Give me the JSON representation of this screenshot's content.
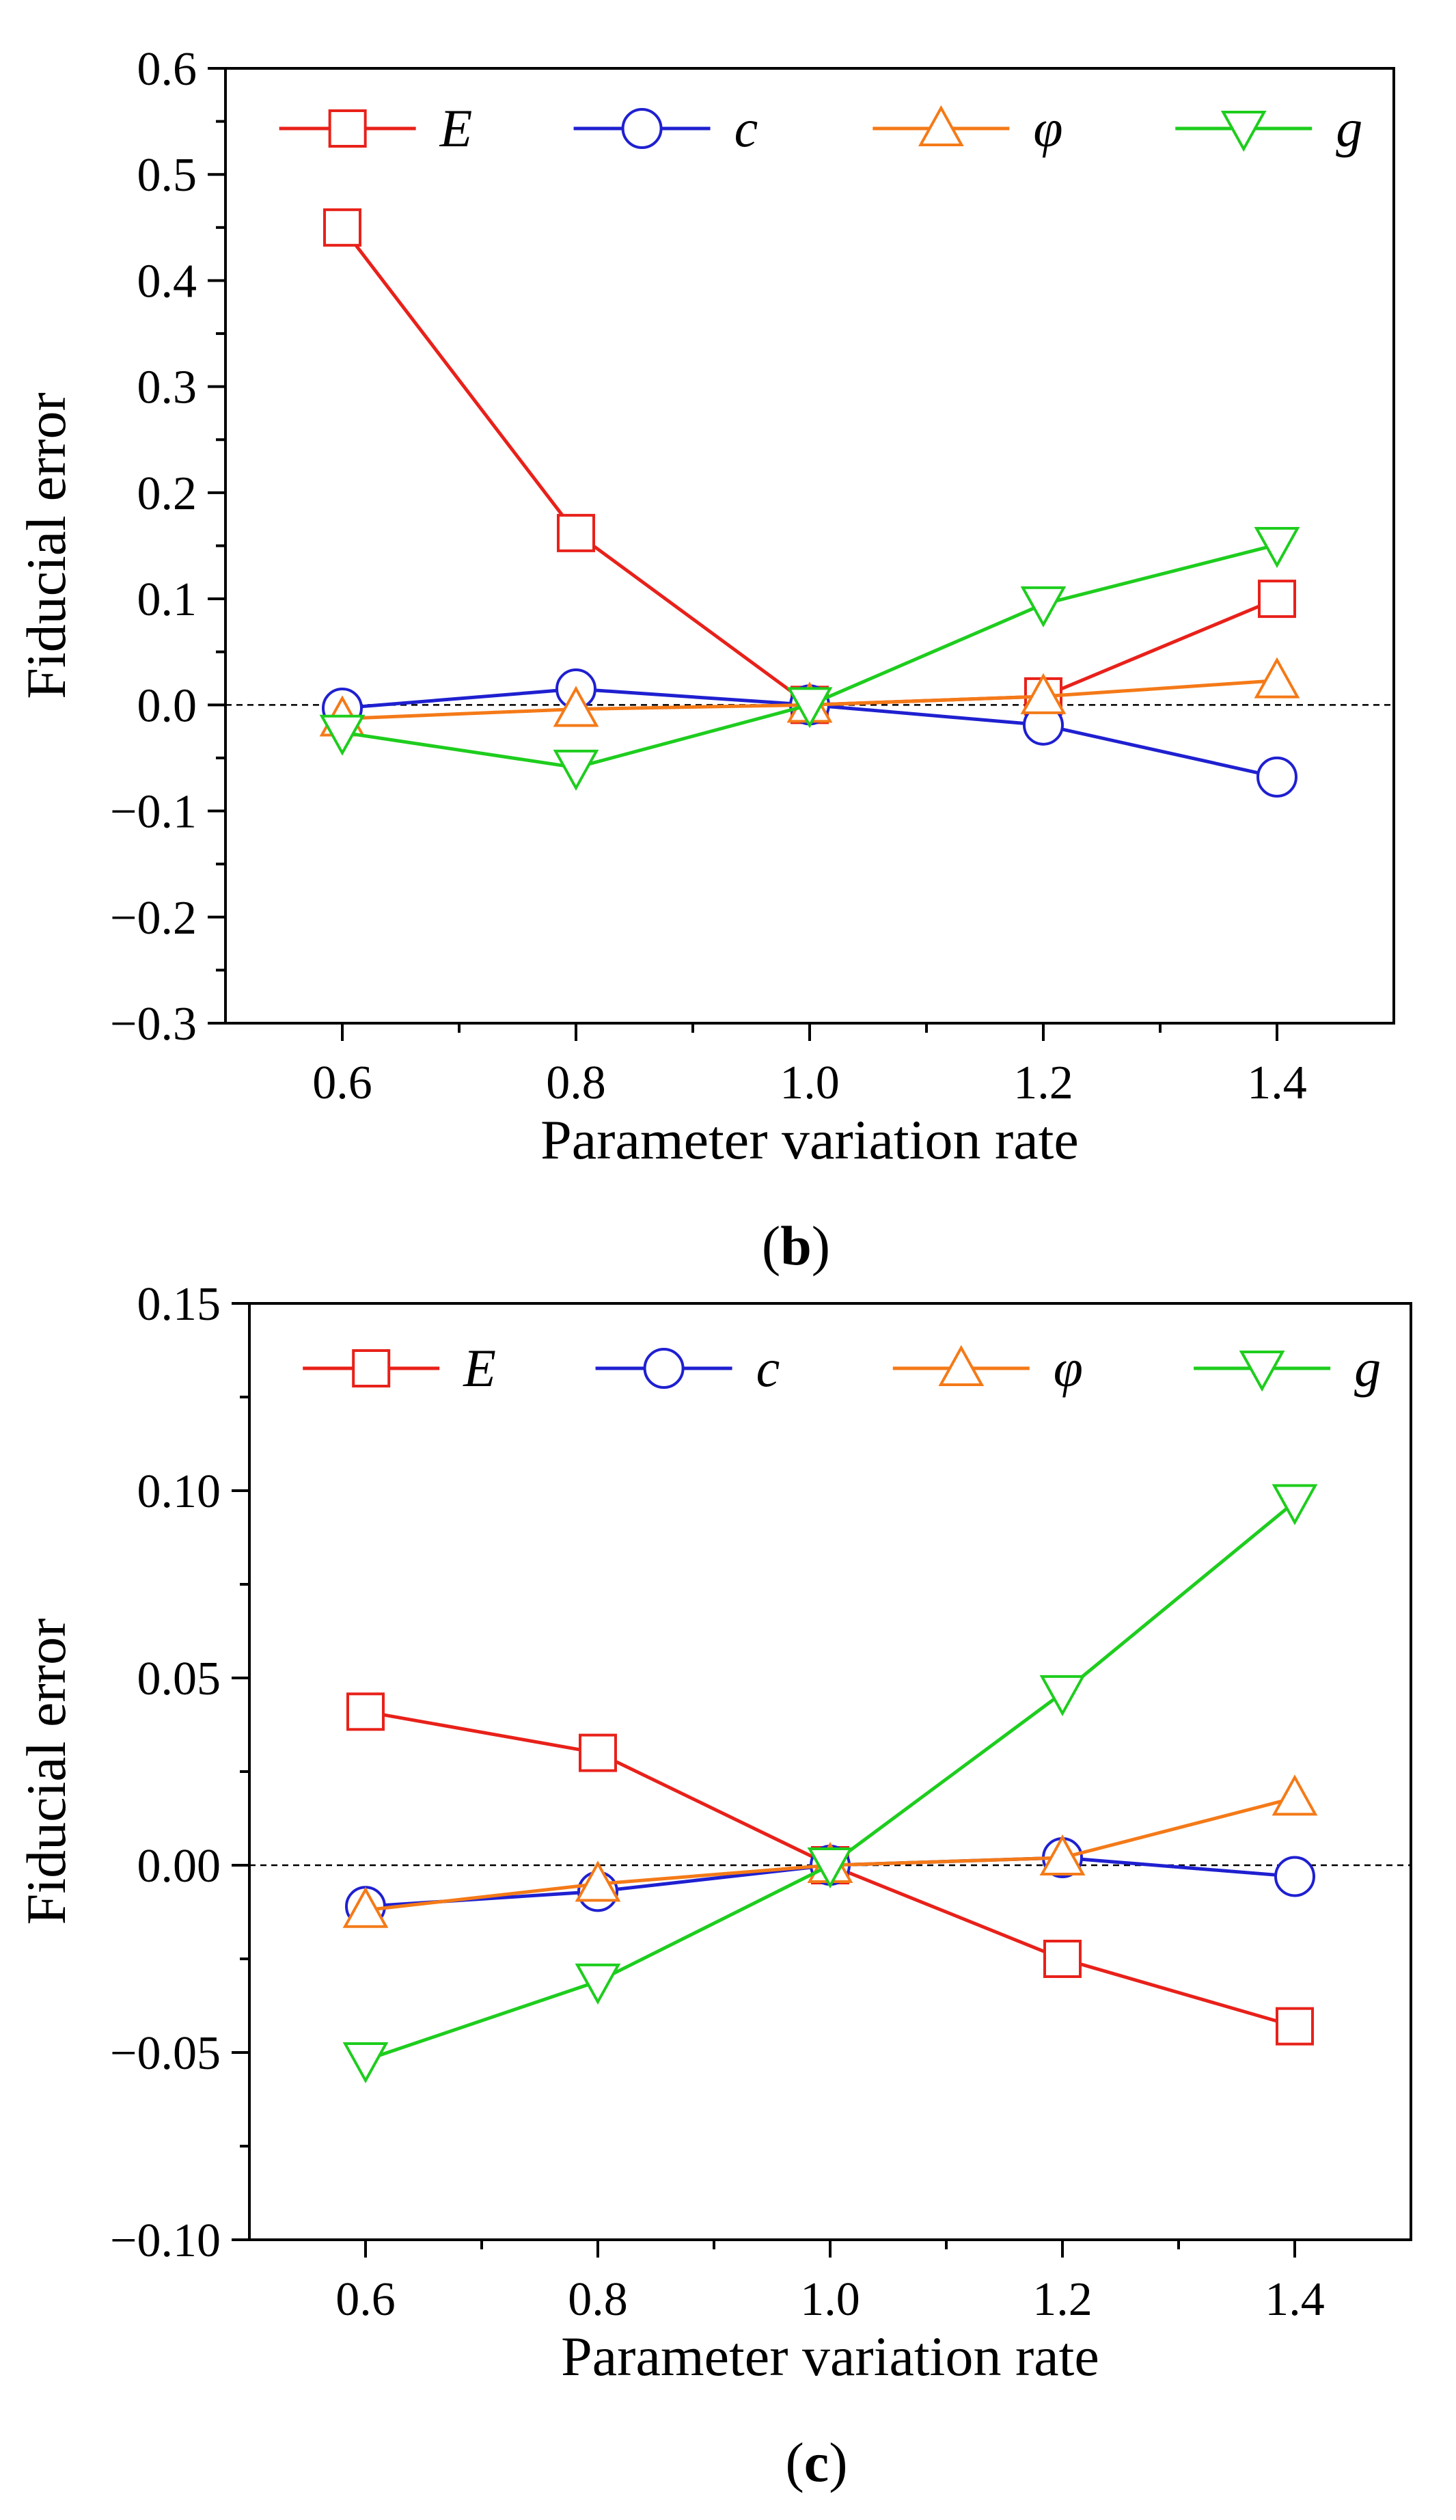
{
  "chart_data": [
    {
      "type": "line",
      "panel_label": "b",
      "xlabel": "Parameter variation rate",
      "ylabel": "Fiducial error",
      "x": [
        0.6,
        0.8,
        1.0,
        1.2,
        1.4
      ],
      "xlim": [
        0.5,
        1.5
      ],
      "ylim": [
        -0.3,
        0.6
      ],
      "xticks": [
        "0.6",
        "0.8",
        "1.0",
        "1.2",
        "1.4"
      ],
      "yticks": [
        {
          "v": -0.3,
          "label": "−0.3"
        },
        {
          "v": -0.2,
          "label": "−0.2"
        },
        {
          "v": -0.1,
          "label": "−0.1"
        },
        {
          "v": 0.0,
          "label": "0.0"
        },
        {
          "v": 0.1,
          "label": "0.1"
        },
        {
          "v": 0.2,
          "label": "0.2"
        },
        {
          "v": 0.3,
          "label": "0.3"
        },
        {
          "v": 0.4,
          "label": "0.4"
        },
        {
          "v": 0.5,
          "label": "0.5"
        },
        {
          "v": 0.6,
          "label": "0.6"
        }
      ],
      "zero_line": true,
      "legend_position": "top",
      "series": [
        {
          "name": "E",
          "color": "#e8211a",
          "marker": "square",
          "values": [
            0.45,
            0.162,
            0.0,
            0.008,
            0.1
          ]
        },
        {
          "name": "c",
          "color": "#1f20d0",
          "marker": "circle",
          "values": [
            -0.003,
            0.015,
            0.0,
            -0.019,
            -0.068
          ]
        },
        {
          "name": "φ",
          "color": "#f47a18",
          "marker": "triangle-up",
          "values": [
            -0.013,
            -0.004,
            0.0,
            0.008,
            0.023
          ]
        },
        {
          "name": "g",
          "color": "#1ecd1e",
          "marker": "triangle-down",
          "values": [
            -0.026,
            -0.059,
            0.0,
            0.095,
            0.151
          ]
        }
      ]
    },
    {
      "type": "line",
      "panel_label": "c",
      "xlabel": "Parameter variation rate",
      "ylabel": "Fiducial error",
      "x": [
        0.6,
        0.8,
        1.0,
        1.2,
        1.4
      ],
      "xlim": [
        0.5,
        1.5
      ],
      "ylim": [
        -0.1,
        0.15
      ],
      "xticks": [
        "0.6",
        "0.8",
        "1.0",
        "1.2",
        "1.4"
      ],
      "yticks": [
        {
          "v": -0.1,
          "label": "−0.10"
        },
        {
          "v": -0.05,
          "label": "−0.05"
        },
        {
          "v": 0.0,
          "label": "0.00"
        },
        {
          "v": 0.05,
          "label": "0.05"
        },
        {
          "v": 0.1,
          "label": "0.10"
        },
        {
          "v": 0.15,
          "label": "0.15"
        }
      ],
      "zero_line": true,
      "legend_position": "top",
      "series": [
        {
          "name": "E",
          "color": "#e8211a",
          "marker": "square",
          "values": [
            0.041,
            0.03,
            0.0,
            -0.025,
            -0.043
          ]
        },
        {
          "name": "c",
          "color": "#1f20d0",
          "marker": "circle",
          "values": [
            -0.011,
            -0.007,
            0.0,
            0.002,
            -0.003
          ]
        },
        {
          "name": "φ",
          "color": "#f47a18",
          "marker": "triangle-up",
          "values": [
            -0.012,
            -0.005,
            0.0,
            0.002,
            0.018
          ]
        },
        {
          "name": "g",
          "color": "#1ecd1e",
          "marker": "triangle-down",
          "values": [
            -0.052,
            -0.031,
            0.0,
            0.046,
            0.097
          ]
        }
      ]
    }
  ]
}
